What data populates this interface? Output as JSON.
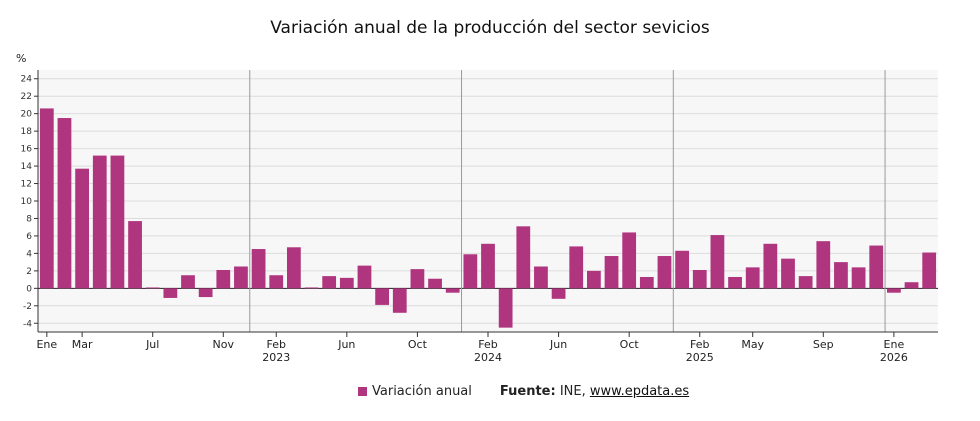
{
  "chart_data": {
    "type": "bar",
    "title": "Variación anual de la producción del sector sevicios",
    "ylabel": "%",
    "ylim": [
      -5,
      25
    ],
    "yticks": [
      -4,
      -2,
      0,
      2,
      4,
      6,
      8,
      10,
      12,
      14,
      16,
      18,
      20,
      22,
      24
    ],
    "grid": true,
    "legend_position": "bottom",
    "x_labels": [
      {
        "index": 0,
        "label": "Ene",
        "year": ""
      },
      {
        "index": 2,
        "label": "Mar",
        "year": ""
      },
      {
        "index": 6,
        "label": "Jul",
        "year": ""
      },
      {
        "index": 10,
        "label": "Nov",
        "year": ""
      },
      {
        "index": 13,
        "label": "Feb",
        "year": "2023"
      },
      {
        "index": 17,
        "label": "Jun",
        "year": ""
      },
      {
        "index": 21,
        "label": "Oct",
        "year": ""
      },
      {
        "index": 25,
        "label": "Feb",
        "year": "2024"
      },
      {
        "index": 29,
        "label": "Jun",
        "year": ""
      },
      {
        "index": 33,
        "label": "Oct",
        "year": ""
      },
      {
        "index": 37,
        "label": "Feb",
        "year": "2025"
      },
      {
        "index": 40,
        "label": "May",
        "year": ""
      },
      {
        "index": 44,
        "label": "Sep",
        "year": ""
      },
      {
        "index": 48,
        "label": "Ene",
        "year": "2026"
      }
    ],
    "year_separators_after_index": [
      11,
      23,
      35,
      47
    ],
    "series": [
      {
        "name": "Variación anual",
        "color": "#b0357f",
        "values": [
          20.6,
          19.5,
          13.7,
          15.2,
          15.2,
          7.7,
          0.1,
          -1.1,
          1.5,
          -1.0,
          2.1,
          2.5,
          4.5,
          1.5,
          4.7,
          0.1,
          1.4,
          1.2,
          2.6,
          -1.9,
          -2.8,
          2.2,
          1.1,
          -0.5,
          3.9,
          5.1,
          -4.5,
          7.1,
          2.5,
          -1.2,
          4.8,
          2.0,
          3.7,
          6.4,
          1.3,
          3.7,
          4.3,
          2.1,
          6.1,
          1.3,
          2.4,
          5.1,
          3.4,
          1.4,
          5.4,
          3.0,
          2.4,
          4.9,
          -0.5,
          0.7,
          4.1
        ]
      }
    ]
  },
  "legend": {
    "label": "Variación anual",
    "source_label": "Fuente:",
    "source_text": " INE, ",
    "source_link": "www.epdata.es"
  }
}
